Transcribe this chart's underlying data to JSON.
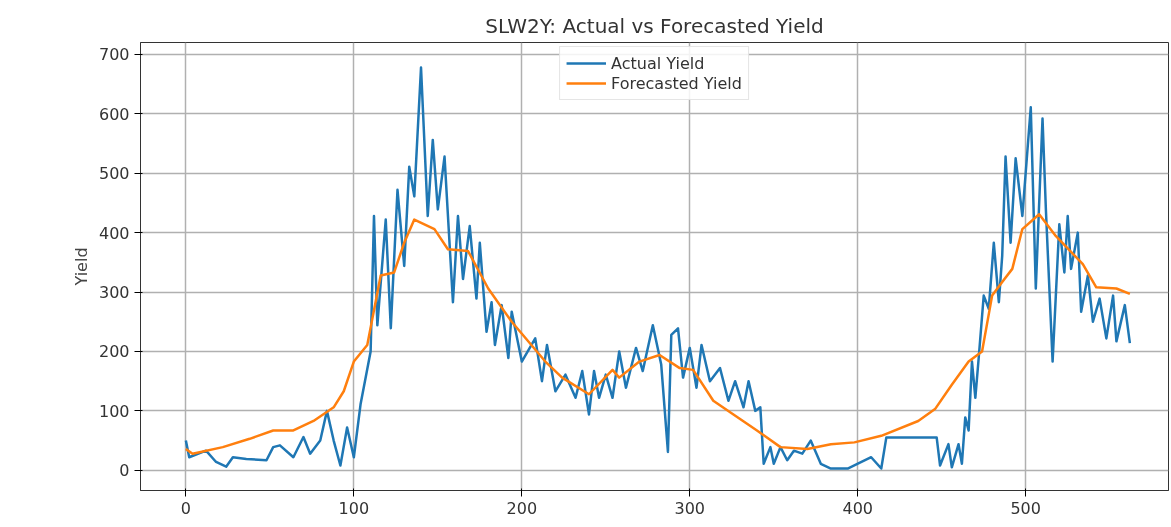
{
  "chart_data": {
    "type": "line",
    "title": "SLW2Y: Actual vs Forecasted Yield",
    "ylabel": "Yield",
    "xlim": [
      -27,
      585
    ],
    "ylim": [
      -34,
      720
    ],
    "xticks": [
      0,
      100,
      200,
      300,
      400,
      500
    ],
    "yticks": [
      0,
      100,
      200,
      300,
      400,
      500,
      600,
      700
    ],
    "grid": true,
    "legend": "top",
    "line_style": "solid",
    "marker": "none",
    "series": [
      {
        "name": "Actual Yield",
        "color": "#1f77b4",
        "x": [
          0,
          2,
          12,
          18,
          24,
          28,
          36,
          48,
          52,
          56,
          64,
          70,
          74,
          80,
          84,
          88,
          92,
          96,
          100,
          104,
          110,
          112,
          114,
          119,
          122,
          126,
          130,
          133,
          136,
          140,
          144,
          147,
          150,
          154,
          159,
          162,
          165,
          169,
          173,
          175,
          179,
          182,
          184,
          188,
          192,
          194,
          200,
          208,
          212,
          215,
          220,
          226,
          232,
          236,
          240,
          243,
          246,
          250,
          254,
          258,
          262,
          268,
          272,
          278,
          283,
          287,
          289,
          293,
          296,
          300,
          304,
          307,
          312,
          318,
          323,
          327,
          332,
          335,
          339,
          342,
          344,
          348,
          350,
          354,
          358,
          362,
          367,
          372,
          378,
          384,
          394,
          408,
          414,
          417,
          447,
          449,
          454,
          456,
          460,
          462,
          464,
          466,
          468,
          470,
          472,
          475,
          478,
          481,
          484,
          486,
          488,
          491,
          494,
          498,
          503,
          506,
          510,
          512,
          516,
          520,
          523,
          525,
          527,
          531,
          533,
          537,
          540,
          544,
          548,
          552,
          554,
          559,
          562
        ],
        "values": [
          50,
          22,
          33,
          14,
          6,
          22,
          19,
          17,
          39,
          42,
          22,
          56,
          28,
          50,
          100,
          50,
          8,
          72,
          22,
          111,
          200,
          428,
          244,
          422,
          239,
          472,
          344,
          511,
          461,
          678,
          428,
          556,
          439,
          528,
          283,
          428,
          322,
          411,
          289,
          383,
          233,
          283,
          211,
          278,
          189,
          267,
          183,
          222,
          150,
          211,
          133,
          161,
          122,
          167,
          94,
          167,
          122,
          161,
          122,
          200,
          139,
          206,
          167,
          244,
          178,
          31,
          228,
          239,
          156,
          206,
          139,
          211,
          150,
          172,
          117,
          150,
          106,
          150,
          100,
          106,
          11,
          39,
          11,
          39,
          17,
          33,
          28,
          50,
          11,
          3,
          3,
          22,
          3,
          55,
          55,
          8,
          44,
          5,
          44,
          11,
          89,
          67,
          183,
          122,
          189,
          294,
          272,
          383,
          283,
          361,
          528,
          383,
          525,
          428,
          611,
          306,
          592,
          439,
          183,
          414,
          333,
          428,
          339,
          400,
          267,
          328,
          250,
          289,
          222,
          294,
          217,
          278,
          214
        ]
      },
      {
        "name": "Forecasted Yield",
        "color": "#ff7f0e",
        "x": [
          0,
          4,
          22,
          38,
          52,
          64,
          76,
          88,
          94,
          100,
          108,
          116,
          124,
          130,
          136,
          148,
          156,
          168,
          180,
          194,
          214,
          224,
          240,
          254,
          258,
          270,
          282,
          294,
          302,
          314,
          326,
          340,
          354,
          370,
          384,
          398,
          414,
          436,
          446,
          456,
          466,
          474,
          480,
          486,
          492,
          498,
          508,
          518,
          534,
          542,
          554,
          562
        ],
        "values": [
          36,
          28,
          39,
          53,
          67,
          67,
          83,
          106,
          133,
          183,
          211,
          328,
          333,
          383,
          422,
          406,
          372,
          369,
          306,
          250,
          183,
          156,
          128,
          169,
          156,
          183,
          194,
          172,
          169,
          117,
          94,
          67,
          39,
          36,
          44,
          47,
          58,
          83,
          103,
          144,
          183,
          200,
          294,
          317,
          339,
          406,
          431,
          394,
          347,
          308,
          306,
          297
        ]
      }
    ]
  }
}
